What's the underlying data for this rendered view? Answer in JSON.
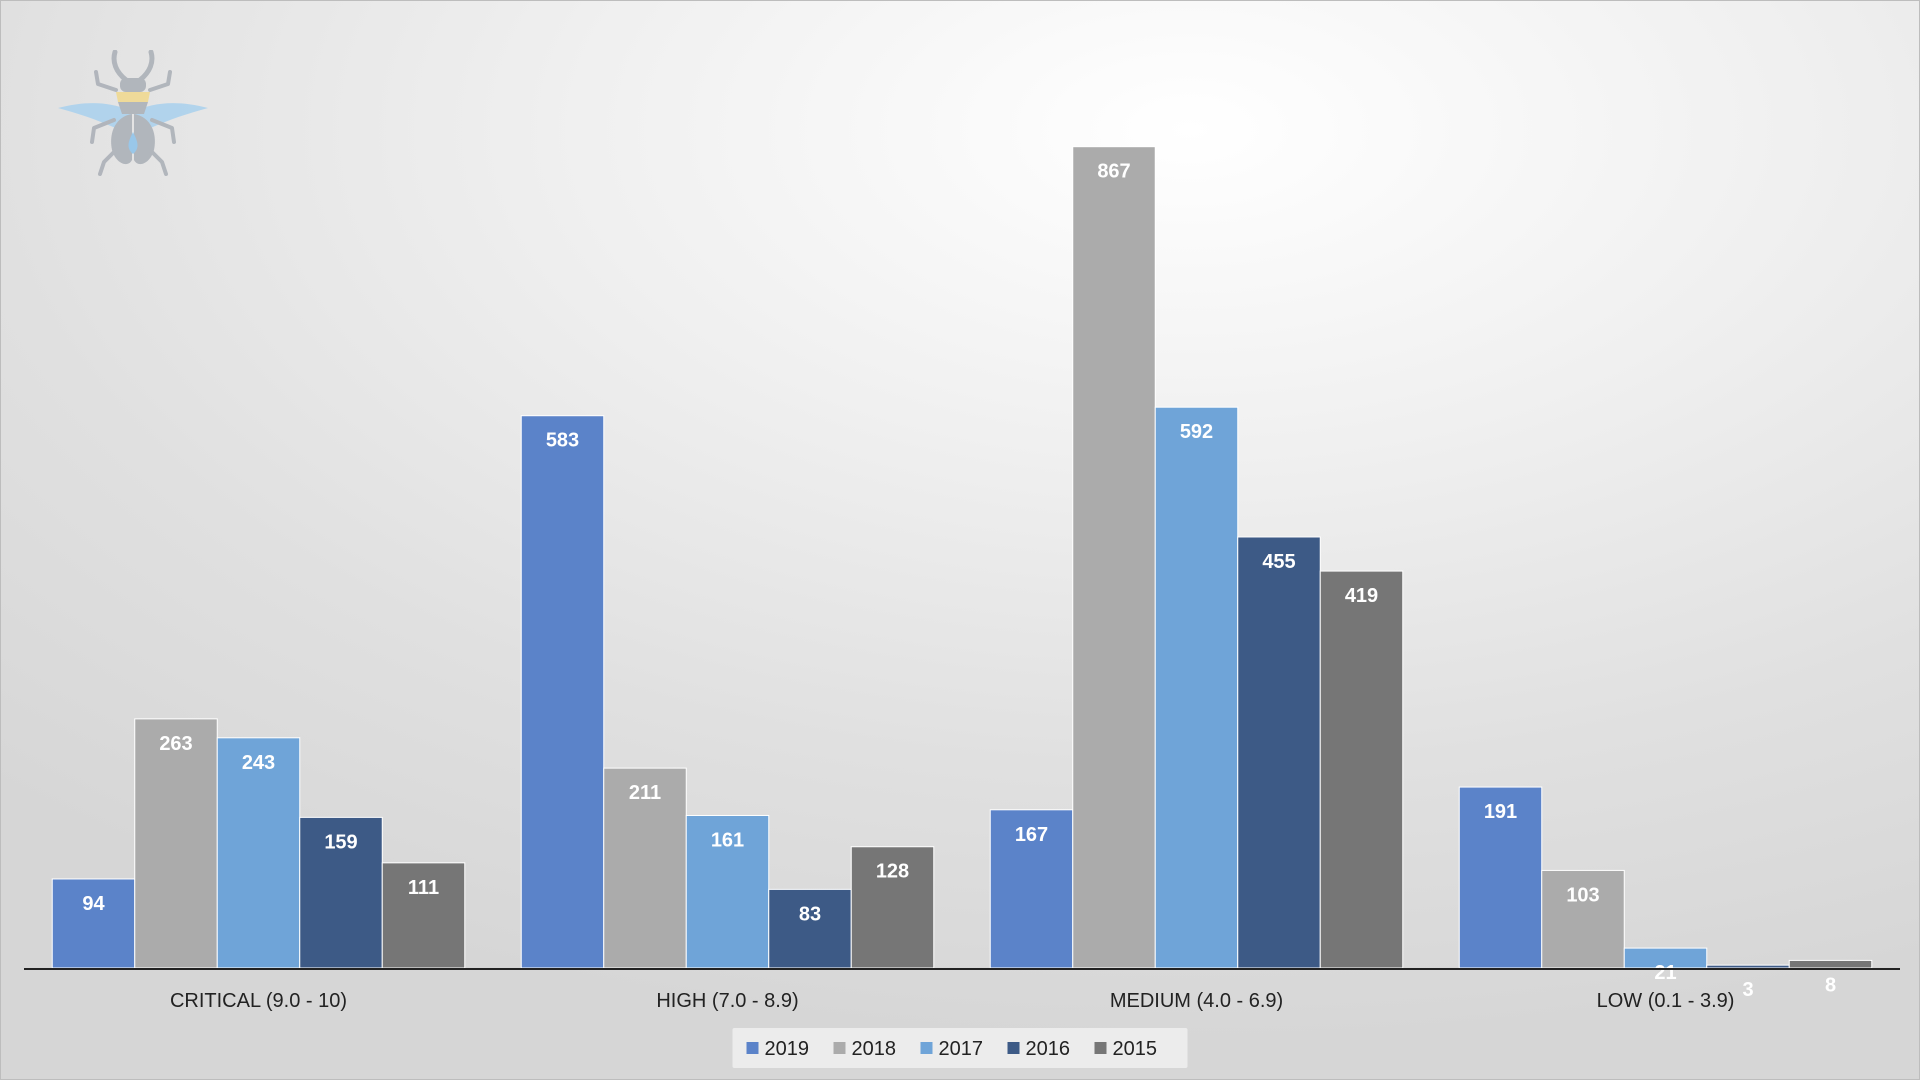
{
  "chart_data": {
    "type": "bar",
    "categories": [
      "CRITICAL (9.0 - 10)",
      "HIGH (7.0 - 8.9)",
      "MEDIUM (4.0 - 6.9)",
      "LOW (0.1 - 3.9)"
    ],
    "series": [
      {
        "name": "2019",
        "color": "#5b83c9",
        "values": [
          94,
          583,
          167,
          191
        ]
      },
      {
        "name": "2018",
        "color": "#ababab",
        "values": [
          263,
          211,
          867,
          103
        ]
      },
      {
        "name": "2017",
        "color": "#6fa4d8",
        "values": [
          243,
          161,
          592,
          21
        ]
      },
      {
        "name": "2016",
        "color": "#3d5a86",
        "values": [
          159,
          83,
          455,
          3
        ]
      },
      {
        "name": "2015",
        "color": "#767676",
        "values": [
          111,
          128,
          419,
          8
        ]
      }
    ],
    "title": "",
    "xlabel": "",
    "ylabel": "",
    "ylim": [
      0,
      1000
    ],
    "grid": false,
    "legend": "bottom-center",
    "data_labels": true
  },
  "logo": {
    "icon": "beetle-logo-icon"
  }
}
